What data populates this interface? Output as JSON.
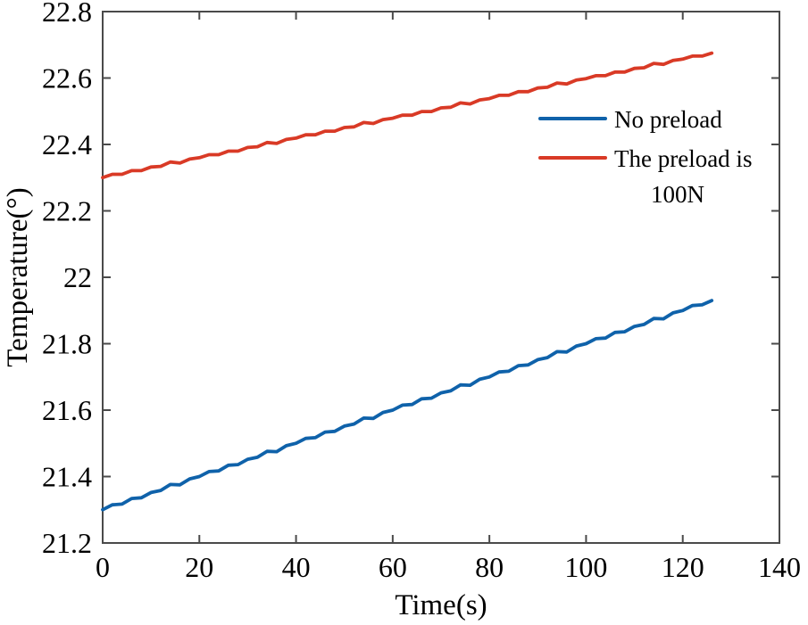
{
  "figure": {
    "background": "#ffffff",
    "axis_color": "#4a4a4a",
    "text_color": "#000000"
  },
  "chart_data": {
    "type": "line",
    "title": "",
    "xlabel": "Time(s)",
    "ylabel": "Temperature(°)",
    "xlim": [
      0,
      140
    ],
    "ylim": [
      21.2,
      22.8
    ],
    "x_ticks": [
      0,
      20,
      40,
      60,
      80,
      100,
      120,
      140
    ],
    "y_ticks": [
      21.2,
      21.4,
      21.6,
      21.8,
      22,
      22.2,
      22.4,
      22.6,
      22.8
    ],
    "grid": false,
    "legend_position": "inside-upper-right",
    "x": [
      0,
      2,
      4,
      6,
      8,
      10,
      12,
      14,
      16,
      18,
      20,
      22,
      24,
      26,
      28,
      30,
      32,
      34,
      36,
      38,
      40,
      42,
      44,
      46,
      48,
      50,
      52,
      54,
      56,
      58,
      60,
      62,
      64,
      66,
      68,
      70,
      72,
      74,
      76,
      78,
      80,
      82,
      84,
      86,
      88,
      90,
      92,
      94,
      96,
      98,
      100,
      102,
      104,
      106,
      108,
      110,
      112,
      114,
      116,
      118,
      120,
      122,
      124,
      126
    ],
    "series": [
      {
        "name": "No preload",
        "legend_lines": [
          "No preload"
        ],
        "color": "#0f62aa",
        "values": [
          21.3,
          21.315,
          21.317,
          21.334,
          21.336,
          21.352,
          21.358,
          21.376,
          21.375,
          21.393,
          21.4,
          21.415,
          21.417,
          21.434,
          21.436,
          21.452,
          21.458,
          21.476,
          21.475,
          21.493,
          21.5,
          21.515,
          21.517,
          21.534,
          21.536,
          21.552,
          21.558,
          21.576,
          21.575,
          21.593,
          21.6,
          21.615,
          21.617,
          21.634,
          21.636,
          21.652,
          21.658,
          21.676,
          21.675,
          21.693,
          21.7,
          21.715,
          21.717,
          21.734,
          21.736,
          21.752,
          21.758,
          21.776,
          21.775,
          21.793,
          21.8,
          21.815,
          21.817,
          21.834,
          21.836,
          21.852,
          21.858,
          21.876,
          21.875,
          21.893,
          21.9,
          21.915,
          21.917,
          21.93
        ]
      },
      {
        "name": "The preload is 100N",
        "legend_lines": [
          "The preload is",
          "100N"
        ],
        "color": "#d93a26",
        "values": [
          22.3,
          22.31,
          22.31,
          22.321,
          22.321,
          22.332,
          22.334,
          22.347,
          22.344,
          22.356,
          22.36,
          22.369,
          22.369,
          22.38,
          22.38,
          22.391,
          22.393,
          22.406,
          22.403,
          22.415,
          22.419,
          22.429,
          22.429,
          22.44,
          22.44,
          22.451,
          22.453,
          22.466,
          22.463,
          22.475,
          22.479,
          22.488,
          22.488,
          22.499,
          22.499,
          22.51,
          22.512,
          22.525,
          22.522,
          22.534,
          22.538,
          22.548,
          22.548,
          22.559,
          22.559,
          22.57,
          22.572,
          22.585,
          22.582,
          22.594,
          22.598,
          22.607,
          22.607,
          22.618,
          22.618,
          22.629,
          22.631,
          22.644,
          22.641,
          22.653,
          22.657,
          22.666,
          22.666,
          22.675
        ]
      }
    ]
  }
}
